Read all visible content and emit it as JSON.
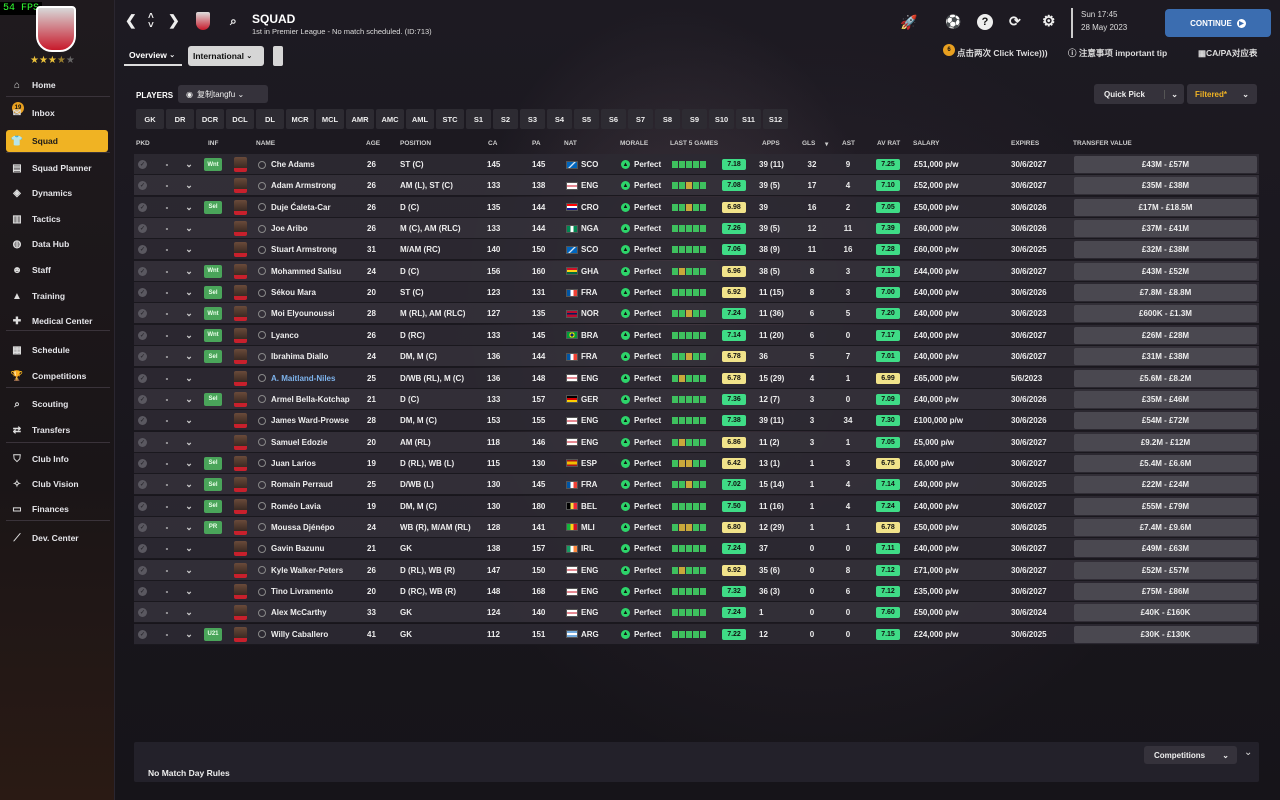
{
  "fps": "54 FPS",
  "colors": {
    "accent": "#f0b323",
    "continue": "#3b6db0",
    "good_rating": "#3fdc86",
    "ok_rating": "#f1e38a",
    "inf_badge": "#4aa55a"
  },
  "club": {
    "stars_filled": "★★★",
    "stars_half": "★",
    "stars_empty": "★",
    "inbox_count": "19"
  },
  "sidebar": {
    "items": [
      {
        "label": "Home",
        "icon": "home-icon"
      },
      {
        "label": "Inbox",
        "icon": "inbox-icon"
      },
      {
        "label": "Squad",
        "icon": "squad-icon"
      },
      {
        "label": "Squad Planner",
        "icon": "planner-icon"
      },
      {
        "label": "Dynamics",
        "icon": "dynamics-icon"
      },
      {
        "label": "Tactics",
        "icon": "tactics-icon"
      },
      {
        "label": "Data Hub",
        "icon": "datahub-icon"
      },
      {
        "label": "Staff",
        "icon": "staff-icon"
      },
      {
        "label": "Training",
        "icon": "training-icon"
      },
      {
        "label": "Medical Center",
        "icon": "medical-icon"
      },
      {
        "label": "Schedule",
        "icon": "schedule-icon"
      },
      {
        "label": "Competitions",
        "icon": "trophy-icon"
      },
      {
        "label": "Scouting",
        "icon": "scouting-icon"
      },
      {
        "label": "Transfers",
        "icon": "transfers-icon"
      },
      {
        "label": "Club Info",
        "icon": "clubinfo-icon"
      },
      {
        "label": "Club Vision",
        "icon": "vision-icon"
      },
      {
        "label": "Finances",
        "icon": "finances-icon"
      },
      {
        "label": "Dev. Center",
        "icon": "devcenter-icon"
      }
    ]
  },
  "header": {
    "title": "SQUAD",
    "subtitle": "1st in Premier League - No match scheduled. (ID:713)",
    "time": "Sun 17:45",
    "date": "28 May 2023",
    "continue": "CONTINUE"
  },
  "tabs": {
    "overview": "Overview",
    "international": "International"
  },
  "tips": {
    "badge": "6",
    "click_twice": "点击两次 Click Twice)))",
    "important": "注意事项 important tip",
    "capa": "CA/PA对应表"
  },
  "toolbar": {
    "players": "PLAYERS",
    "view": "复制tangfu",
    "quick_pick": "Quick Pick",
    "filtered": "Filtered*"
  },
  "positions": [
    "GK",
    "DR",
    "DCR",
    "DCL",
    "DL",
    "MCR",
    "MCL",
    "AMR",
    "AMC",
    "AML",
    "STC",
    "S1",
    "S2",
    "S3",
    "S4",
    "S5",
    "S6",
    "S7",
    "S8",
    "S9",
    "S10",
    "S11",
    "S12"
  ],
  "columns": {
    "pkd": "PKD",
    "inf": "INF",
    "name": "NAME",
    "age": "AGE",
    "position": "POSITION",
    "ca": "CA",
    "pa": "PA",
    "nat": "NAT",
    "morale": "MORALE",
    "last5": "LAST 5 GAMES",
    "apps": "APPS",
    "gls": "GLS",
    "ast": "AST",
    "avrat": "AV RAT",
    "salary": "SALARY",
    "expires": "EXPIRES",
    "transfer": "TRANSFER VALUE"
  },
  "players": [
    {
      "dash": "-",
      "inf": "Wnt",
      "name": "Che Adams",
      "age": "26",
      "pos": "ST (C)",
      "ca": "145",
      "pa": "145",
      "nat": "SCO",
      "morale": "Perfect",
      "rating": "7.18",
      "rc": "g",
      "apps": "39 (11)",
      "gls": "32",
      "ast": "9",
      "avrat": "7.25",
      "ac": "g",
      "salary": "£51,000 p/w",
      "expires": "30/6/2027",
      "value": "£43M - £57M",
      "form": "ggggg"
    },
    {
      "dash": "-",
      "inf": "",
      "name": "Adam Armstrong",
      "age": "26",
      "pos": "AM (L), ST (C)",
      "ca": "133",
      "pa": "138",
      "nat": "ENG",
      "morale": "Perfect",
      "rating": "7.08",
      "rc": "g",
      "apps": "39 (5)",
      "gls": "17",
      "ast": "4",
      "avrat": "7.10",
      "ac": "g",
      "salary": "£52,000 p/w",
      "expires": "30/6/2027",
      "value": "£35M - £38M",
      "form": "ggogg"
    },
    {
      "dash": "-",
      "inf": "Sel",
      "name": "Duje Ćaleta-Car",
      "age": "26",
      "pos": "D (C)",
      "ca": "135",
      "pa": "144",
      "nat": "CRO",
      "morale": "Perfect",
      "rating": "6.98",
      "rc": "y",
      "apps": "39",
      "gls": "16",
      "ast": "2",
      "avrat": "7.05",
      "ac": "g",
      "salary": "£50,000 p/w",
      "expires": "30/6/2026",
      "value": "£17M - £18.5M",
      "form": "ggogg"
    },
    {
      "dash": "-",
      "inf": "",
      "name": "Joe Aribo",
      "age": "26",
      "pos": "M (C), AM (RLC)",
      "ca": "133",
      "pa": "144",
      "nat": "NGA",
      "morale": "Perfect",
      "rating": "7.26",
      "rc": "g",
      "apps": "39 (5)",
      "gls": "12",
      "ast": "11",
      "avrat": "7.39",
      "ac": "g",
      "salary": "£60,000 p/w",
      "expires": "30/6/2026",
      "value": "£37M - £41M",
      "form": "ggggg"
    },
    {
      "dash": "-",
      "inf": "",
      "name": "Stuart Armstrong",
      "age": "31",
      "pos": "M/AM (RC)",
      "ca": "140",
      "pa": "150",
      "nat": "SCO",
      "morale": "Perfect",
      "rating": "7.06",
      "rc": "g",
      "apps": "38 (9)",
      "gls": "11",
      "ast": "16",
      "avrat": "7.28",
      "ac": "g",
      "salary": "£60,000 p/w",
      "expires": "30/6/2025",
      "value": "£32M - £38M",
      "form": "ggggg"
    },
    {
      "dash": "-",
      "inf": "Wnt",
      "name": "Mohammed Salisu",
      "age": "24",
      "pos": "D (C)",
      "ca": "156",
      "pa": "160",
      "nat": "GHA",
      "morale": "Perfect",
      "rating": "6.96",
      "rc": "y",
      "apps": "38 (5)",
      "gls": "8",
      "ast": "3",
      "avrat": "7.13",
      "ac": "g",
      "salary": "£44,000 p/w",
      "expires": "30/6/2027",
      "value": "£43M - £52M",
      "form": "goggg"
    },
    {
      "dash": "-",
      "inf": "Sel",
      "name": "Sékou Mara",
      "age": "20",
      "pos": "ST (C)",
      "ca": "123",
      "pa": "131",
      "nat": "FRA",
      "morale": "Perfect",
      "rating": "6.92",
      "rc": "y",
      "apps": "11 (15)",
      "gls": "8",
      "ast": "3",
      "avrat": "7.00",
      "ac": "g",
      "salary": "£40,000 p/w",
      "expires": "30/6/2026",
      "value": "£7.8M - £8.8M",
      "form": "ggggg"
    },
    {
      "dash": "-",
      "inf": "Wnt",
      "name": "Moi Elyounoussi",
      "age": "28",
      "pos": "M (RL), AM (RLC)",
      "ca": "127",
      "pa": "135",
      "nat": "NOR",
      "morale": "Perfect",
      "rating": "7.24",
      "rc": "g",
      "apps": "11 (36)",
      "gls": "6",
      "ast": "5",
      "avrat": "7.20",
      "ac": "g",
      "salary": "£40,000 p/w",
      "expires": "30/6/2023",
      "value": "£600K - £1.3M",
      "form": "ggogg"
    },
    {
      "dash": "-",
      "inf": "Wnt",
      "name": "Lyanco",
      "age": "26",
      "pos": "D (RC)",
      "ca": "133",
      "pa": "145",
      "nat": "BRA",
      "morale": "Perfect",
      "rating": "7.14",
      "rc": "g",
      "apps": "11 (20)",
      "gls": "6",
      "ast": "0",
      "avrat": "7.17",
      "ac": "g",
      "salary": "£40,000 p/w",
      "expires": "30/6/2027",
      "value": "£26M - £28M",
      "form": "ggggg"
    },
    {
      "dash": "-",
      "inf": "Sel",
      "name": "Ibrahima Diallo",
      "age": "24",
      "pos": "DM, M (C)",
      "ca": "136",
      "pa": "144",
      "nat": "FRA",
      "morale": "Perfect",
      "rating": "6.78",
      "rc": "y",
      "apps": "36",
      "gls": "5",
      "ast": "7",
      "avrat": "7.01",
      "ac": "g",
      "salary": "£40,000 p/w",
      "expires": "30/6/2027",
      "value": "£31M - £38M",
      "form": "ggogg"
    },
    {
      "dash": "-",
      "inf": "",
      "name": "A. Maitland-Niles",
      "age": "25",
      "pos": "D/WB (RL), M (C)",
      "ca": "136",
      "pa": "148",
      "nat": "ENG",
      "morale": "Perfect",
      "rating": "6.78",
      "rc": "y",
      "apps": "15 (29)",
      "gls": "4",
      "ast": "1",
      "avrat": "6.99",
      "ac": "y",
      "salary": "£65,000 p/w",
      "expires": "5/6/2023",
      "value": "£5.6M - £8.2M",
      "form": "goggg",
      "link": true
    },
    {
      "dash": "-",
      "inf": "Sel",
      "name": "Armel Bella-Kotchap",
      "age": "21",
      "pos": "D (C)",
      "ca": "133",
      "pa": "157",
      "nat": "GER",
      "morale": "Perfect",
      "rating": "7.36",
      "rc": "g",
      "apps": "12 (7)",
      "gls": "3",
      "ast": "0",
      "avrat": "7.09",
      "ac": "g",
      "salary": "£40,000 p/w",
      "expires": "30/6/2026",
      "value": "£35M - £46M",
      "form": "ggggg"
    },
    {
      "dash": "-",
      "inf": "",
      "name": "James Ward-Prowse",
      "age": "28",
      "pos": "DM, M (C)",
      "ca": "153",
      "pa": "155",
      "nat": "ENG",
      "morale": "Perfect",
      "rating": "7.38",
      "rc": "g",
      "apps": "39 (11)",
      "gls": "3",
      "ast": "34",
      "avrat": "7.30",
      "ac": "g",
      "salary": "£100,000 p/w",
      "expires": "30/6/2026",
      "value": "£54M - £72M",
      "form": "ggggg"
    },
    {
      "dash": "-",
      "inf": "",
      "name": "Samuel Edozie",
      "age": "20",
      "pos": "AM (RL)",
      "ca": "118",
      "pa": "146",
      "nat": "ENG",
      "morale": "Perfect",
      "rating": "6.86",
      "rc": "y",
      "apps": "11 (2)",
      "gls": "3",
      "ast": "1",
      "avrat": "7.05",
      "ac": "g",
      "salary": "£5,000 p/w",
      "expires": "30/6/2027",
      "value": "£9.2M - £12M",
      "form": "goggg"
    },
    {
      "dash": "-",
      "inf": "Sel",
      "name": "Juan Larios",
      "age": "19",
      "pos": "D (RL), WB (L)",
      "ca": "115",
      "pa": "130",
      "nat": "ESP",
      "morale": "Perfect",
      "rating": "6.42",
      "rc": "y",
      "apps": "13 (1)",
      "gls": "1",
      "ast": "3",
      "avrat": "6.75",
      "ac": "y",
      "salary": "£6,000 p/w",
      "expires": "30/6/2027",
      "value": "£5.4M - £6.6M",
      "form": "googg"
    },
    {
      "dash": "-",
      "inf": "Sel",
      "name": "Romain Perraud",
      "age": "25",
      "pos": "D/WB (L)",
      "ca": "130",
      "pa": "145",
      "nat": "FRA",
      "morale": "Perfect",
      "rating": "7.02",
      "rc": "g",
      "apps": "15 (14)",
      "gls": "1",
      "ast": "4",
      "avrat": "7.14",
      "ac": "g",
      "salary": "£40,000 p/w",
      "expires": "30/6/2025",
      "value": "£22M - £24M",
      "form": "ggogg"
    },
    {
      "dash": "-",
      "inf": "Sel",
      "name": "Roméo Lavia",
      "age": "19",
      "pos": "DM, M (C)",
      "ca": "130",
      "pa": "180",
      "nat": "BEL",
      "morale": "Perfect",
      "rating": "7.50",
      "rc": "g",
      "apps": "11 (16)",
      "gls": "1",
      "ast": "4",
      "avrat": "7.24",
      "ac": "g",
      "salary": "£40,000 p/w",
      "expires": "30/6/2027",
      "value": "£55M - £79M",
      "form": "ggggg"
    },
    {
      "dash": "-",
      "inf": "PR",
      "name": "Moussa Djénépo",
      "age": "24",
      "pos": "WB (R), M/AM (RL)",
      "ca": "128",
      "pa": "141",
      "nat": "MLI",
      "morale": "Perfect",
      "rating": "6.80",
      "rc": "y",
      "apps": "12 (29)",
      "gls": "1",
      "ast": "1",
      "avrat": "6.78",
      "ac": "y",
      "salary": "£50,000 p/w",
      "expires": "30/6/2025",
      "value": "£7.4M - £9.6M",
      "form": "googg"
    },
    {
      "dash": "-",
      "inf": "",
      "name": "Gavin Bazunu",
      "age": "21",
      "pos": "GK",
      "ca": "138",
      "pa": "157",
      "nat": "IRL",
      "morale": "Perfect",
      "rating": "7.24",
      "rc": "g",
      "apps": "37",
      "gls": "0",
      "ast": "0",
      "avrat": "7.11",
      "ac": "g",
      "salary": "£40,000 p/w",
      "expires": "30/6/2027",
      "value": "£49M - £63M",
      "form": "ggggg"
    },
    {
      "dash": "-",
      "inf": "",
      "name": "Kyle Walker-Peters",
      "age": "26",
      "pos": "D (RL), WB (R)",
      "ca": "147",
      "pa": "150",
      "nat": "ENG",
      "morale": "Perfect",
      "rating": "6.92",
      "rc": "y",
      "apps": "35 (6)",
      "gls": "0",
      "ast": "8",
      "avrat": "7.12",
      "ac": "g",
      "salary": "£71,000 p/w",
      "expires": "30/6/2027",
      "value": "£52M - £57M",
      "form": "goggg"
    },
    {
      "dash": "-",
      "inf": "",
      "name": "Tino Livramento",
      "age": "20",
      "pos": "D (RC), WB (R)",
      "ca": "148",
      "pa": "168",
      "nat": "ENG",
      "morale": "Perfect",
      "rating": "7.32",
      "rc": "g",
      "apps": "36 (3)",
      "gls": "0",
      "ast": "6",
      "avrat": "7.12",
      "ac": "g",
      "salary": "£35,000 p/w",
      "expires": "30/6/2027",
      "value": "£75M - £86M",
      "form": "ggggg"
    },
    {
      "dash": "-",
      "inf": "",
      "name": "Alex McCarthy",
      "age": "33",
      "pos": "GK",
      "ca": "124",
      "pa": "140",
      "nat": "ENG",
      "morale": "Perfect",
      "rating": "7.24",
      "rc": "g",
      "apps": "1",
      "gls": "0",
      "ast": "0",
      "avrat": "7.60",
      "ac": "g",
      "salary": "£50,000 p/w",
      "expires": "30/6/2024",
      "value": "£40K - £160K",
      "form": "ggggg"
    },
    {
      "dash": "-",
      "inf": "U21",
      "name": "Willy Caballero",
      "age": "41",
      "pos": "GK",
      "ca": "112",
      "pa": "151",
      "nat": "ARG",
      "morale": "Perfect",
      "rating": "7.22",
      "rc": "g",
      "apps": "12",
      "gls": "0",
      "ast": "0",
      "avrat": "7.15",
      "ac": "g",
      "salary": "£24,000 p/w",
      "expires": "30/6/2025",
      "value": "£30K - £130K",
      "form": "ggggg"
    }
  ],
  "footer": {
    "competitions": "Competitions",
    "rules": "No Match Day Rules"
  }
}
